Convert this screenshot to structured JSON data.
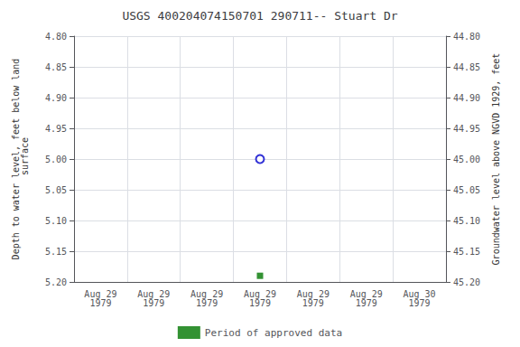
{
  "chart_data": {
    "type": "scatter",
    "title": "USGS 400204074150701 290711-- Stuart Dr",
    "ylabel": "Depth to water level, feet below land\n surface",
    "y2label": "Groundwater level above NGVD 1929, feet",
    "categories": [
      "Aug 29\n1979",
      "Aug 29\n1979",
      "Aug 29\n1979",
      "Aug 29\n1979",
      "Aug 29\n1979",
      "Aug 29\n1979",
      "Aug 30\n1979"
    ],
    "series": [
      {
        "color": "#0000cc",
        "marker": "open-circle",
        "values": [
          null,
          null,
          null,
          5.0,
          null,
          null,
          null
        ]
      },
      {
        "name": "Period of approved data",
        "color": "#007700",
        "marker": "square",
        "values": [
          null,
          null,
          null,
          5.19,
          null,
          null,
          null
        ]
      }
    ],
    "ylim": [
      5.2,
      4.8
    ],
    "yticks": [
      {
        "value": 4.8,
        "label": "4.80"
      },
      {
        "value": 4.85,
        "label": "4.85"
      },
      {
        "value": 4.9,
        "label": "4.90"
      },
      {
        "value": 4.95,
        "label": "4.95"
      },
      {
        "value": 5.0,
        "label": "5.00"
      },
      {
        "value": 5.05,
        "label": "5.05"
      },
      {
        "value": 5.1,
        "label": "5.10"
      },
      {
        "value": 5.15,
        "label": "5.15"
      },
      {
        "value": 5.2,
        "label": "5.20"
      }
    ],
    "y2lim": [
      45.2,
      44.8
    ],
    "y2ticks": [
      {
        "value": 44.8,
        "label": "44.80"
      },
      {
        "value": 44.85,
        "label": "44.85"
      },
      {
        "value": 44.9,
        "label": "44.90"
      },
      {
        "value": 44.95,
        "label": "44.95"
      },
      {
        "value": 45.0,
        "label": "45.00"
      },
      {
        "value": 45.05,
        "label": "45.05"
      },
      {
        "value": 45.1,
        "label": "45.10"
      },
      {
        "value": 45.15,
        "label": "45.15"
      },
      {
        "value": 45.2,
        "label": "45.20"
      }
    ],
    "grid": true,
    "legend": "bottom"
  }
}
